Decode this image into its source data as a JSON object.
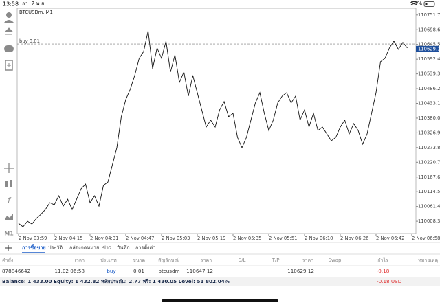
{
  "status_bar": {
    "time": "13:58",
    "date": "อา. 2 พ.ย.",
    "battery": "16%"
  },
  "chart_data": {
    "type": "line",
    "title": "BTCUSDm, M1",
    "color": "#111111",
    "grid": false,
    "categories": [
      "2 Nov 03:59",
      null,
      null,
      null,
      null,
      null,
      null,
      null,
      "2 Nov 04:15",
      null,
      null,
      null,
      null,
      null,
      null,
      null,
      "2 Nov 04:31",
      null,
      null,
      null,
      null,
      null,
      null,
      null,
      "2 Nov 04:47",
      null,
      null,
      null,
      null,
      null,
      null,
      null,
      "2 Nov 05:03",
      null,
      null,
      null,
      null,
      null,
      null,
      null,
      "2 Nov 05:19",
      null,
      null,
      null,
      null,
      null,
      null,
      null,
      "2 Nov 05:35",
      null,
      null,
      null,
      null,
      null,
      null,
      null,
      "2 Nov 05:51",
      null,
      null,
      null,
      null,
      null,
      null,
      null,
      "2 Nov 06:10",
      null,
      null,
      null,
      null,
      null,
      null,
      null,
      "2 Nov 06:26",
      null,
      null,
      null,
      null,
      null,
      null,
      null,
      "2 Nov 06:42",
      null,
      null,
      null,
      null,
      null,
      null,
      null,
      "2 Nov 06:58"
    ],
    "values": [
      110000.9,
      109988.5,
      110008.3,
      109998.4,
      110018.2,
      110033.1,
      110050.4,
      110075.2,
      110067.8,
      110100.0,
      110062.8,
      110087.6,
      110050.4,
      110087.6,
      110124.8,
      110142.1,
      110075.2,
      110100.0,
      110062.8,
      110137.2,
      110149.5,
      110211.5,
      110273.4,
      110385.0,
      110446.9,
      110484.1,
      110533.6,
      110595.6,
      110620.4,
      110694.7,
      110558.4,
      110632.8,
      110595.6,
      110657.5,
      110546.0,
      110608.0,
      110508.9,
      110546.0,
      110459.3,
      110533.6,
      110471.7,
      110409.7,
      110347.8,
      110372.6,
      110347.8,
      110409.7,
      110439.5,
      110385.0,
      110397.3,
      110310.6,
      110273.4,
      110310.6,
      110372.6,
      110434.5,
      110471.7,
      110397.3,
      110335.4,
      110372.6,
      110434.5,
      110459.3,
      110471.7,
      110434.5,
      110459.3,
      110372.6,
      110409.7,
      110347.8,
      110397.3,
      110335.4,
      110347.8,
      110323.0,
      110298.2,
      110310.6,
      110347.8,
      110372.6,
      110323.0,
      110360.2,
      110335.4,
      110285.8,
      110323.0,
      110397.3,
      110471.7,
      110583.2,
      110595.6,
      110632.8,
      110657.5,
      110627.8,
      110652.6,
      110632.8,
      null
    ],
    "ylim": [
      109964,
      110776
    ],
    "yticks": [
      {
        "value": 110008.3,
        "label": "110008.30"
      },
      {
        "value": 110061.4,
        "label": "110061.40"
      },
      110114.5,
      {
        "value": 110167.6,
        "label": "110167.60"
      },
      {
        "value": 110220.7,
        "label": "110220.70"
      },
      {
        "value": 110273.8,
        "label": "110273.80"
      },
      {
        "value": 110326.9,
        "label": "110326.90"
      },
      {
        "value": 110380,
        "label": "110380.00"
      },
      {
        "value": 110433.1,
        "label": "110433.10"
      },
      {
        "value": 110486.2,
        "label": "110486.20"
      },
      {
        "value": 110539.3,
        "label": "110539.30"
      },
      {
        "value": 110592.4,
        "label": "110592.40"
      },
      110645.5,
      {
        "value": 110698.6,
        "label": "110698.60"
      },
      {
        "value": 110751.7,
        "label": "110751.70"
      }
    ],
    "current_price": 110629.12,
    "buy_line": {
      "label": "buy 0.01",
      "value": 110647.12
    }
  },
  "tabs": [
    "การซื้อขาย",
    "ประวัติ",
    "กล่องจดหมาย",
    "ข่าว",
    "บันทึก",
    "การตั้งค่า"
  ],
  "table": {
    "headers": [
      "คำสั่ง",
      "เวลา",
      "ประเภท",
      "ขนาด",
      "สัญลักษณ์",
      "ราคา",
      "S/L",
      "T/P",
      "ราคา",
      "Swap",
      "กำไร",
      "หมายเหตุ"
    ],
    "rows": [
      {
        "order": "878846642",
        "time": "11.02 06:58",
        "type": "buy",
        "volume": "0.01",
        "symbol": "btcusdm",
        "price": "110647.12",
        "current_price": "110629.12",
        "profit": "-0.18"
      }
    ]
  },
  "footer": {
    "summary": "Balance: 1 433.00 Equity: 1 432.82 หลักประกัน: 2.77 ฟรี: 1 430.05 Level: 51 802.04%",
    "profit": "-0.18 USD"
  }
}
